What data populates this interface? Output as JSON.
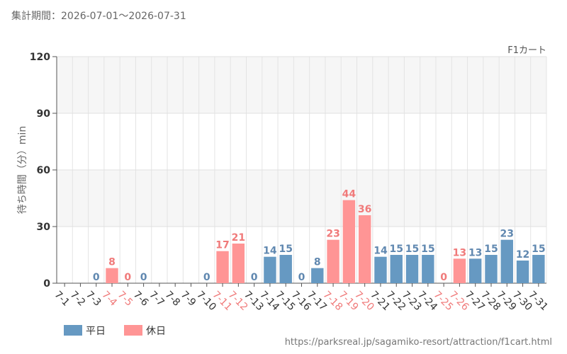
{
  "header": {
    "period_label": "集計期間：2026-07-01～2026-07-31",
    "attraction_name": "F1カート"
  },
  "footer": {
    "source_url": "https://parksreal.jp/sagamiko-resort/attraction/f1cart.html"
  },
  "chart_data": {
    "type": "bar",
    "title": "",
    "xlabel": "",
    "ylabel": "待ち時間（分）min",
    "ylim": [
      0,
      120
    ],
    "yticks": [
      0,
      30,
      60,
      90,
      120
    ],
    "grid": true,
    "legend_placement": "bottom-left",
    "categories": [
      "7-1",
      "7-2",
      "7-3",
      "7-4",
      "7-5",
      "7-6",
      "7-7",
      "7-8",
      "7-9",
      "7-10",
      "7-11",
      "7-12",
      "7-13",
      "7-14",
      "7-15",
      "7-16",
      "7-17",
      "7-18",
      "7-19",
      "7-20",
      "7-21",
      "7-22",
      "7-23",
      "7-24",
      "7-25",
      "7-26",
      "7-27",
      "7-28",
      "7-29",
      "7-30",
      "7-31"
    ],
    "values": [
      null,
      null,
      0,
      8,
      0,
      0,
      null,
      null,
      null,
      0,
      17,
      21,
      0,
      14,
      15,
      0,
      8,
      23,
      44,
      36,
      14,
      15,
      15,
      15,
      0,
      13,
      13,
      15,
      23,
      12,
      15
    ],
    "day_type": [
      "weekday",
      "weekday",
      "weekday",
      "holiday",
      "holiday",
      "weekday",
      "weekday",
      "weekday",
      "weekday",
      "weekday",
      "holiday",
      "holiday",
      "weekday",
      "weekday",
      "weekday",
      "weekday",
      "weekday",
      "holiday",
      "holiday",
      "holiday",
      "weekday",
      "weekday",
      "weekday",
      "weekday",
      "holiday",
      "holiday",
      "weekday",
      "weekday",
      "weekday",
      "weekday",
      "weekday"
    ],
    "legend": [
      {
        "key": "weekday",
        "label": "平日",
        "color": "#6699c2"
      },
      {
        "key": "holiday",
        "label": "休日",
        "color": "#ff9595"
      }
    ],
    "colors": {
      "weekday_bar": "#6699c2",
      "holiday_bar": "#ff9595",
      "weekday_text": "#6088b0",
      "holiday_text": "#f07a7a",
      "tick_text": "#333333"
    }
  }
}
